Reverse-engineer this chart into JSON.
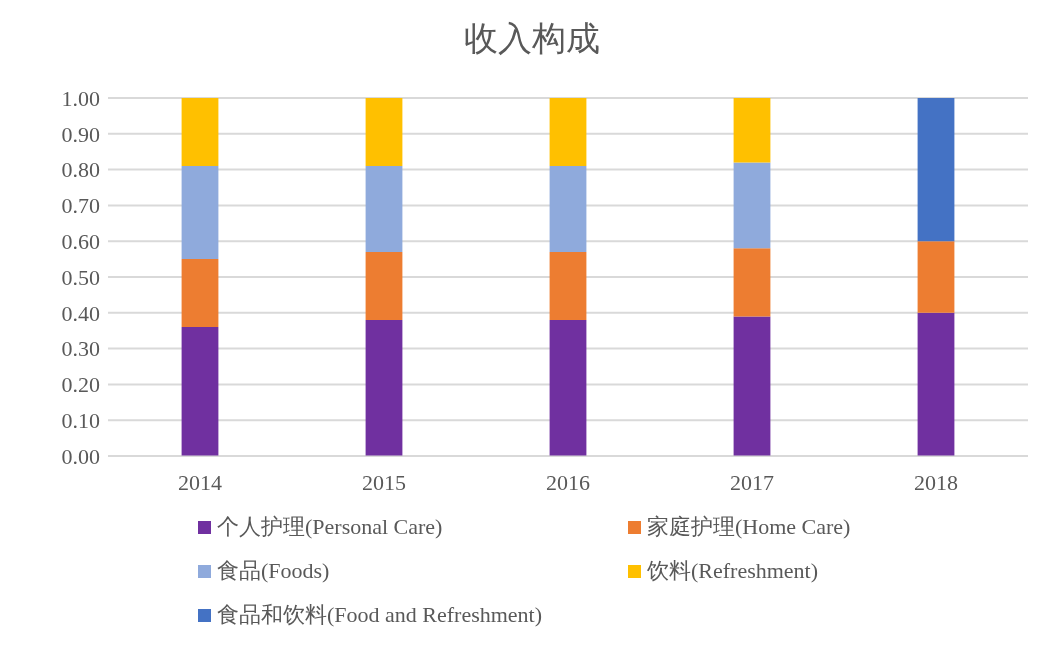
{
  "chart_data": {
    "type": "bar",
    "title": "收入构成",
    "stacked": true,
    "categories": [
      "2014",
      "2015",
      "2016",
      "2017",
      "2018"
    ],
    "series": [
      {
        "name": "个人护理(Personal Care)",
        "color": "#7030a0",
        "values": [
          0.36,
          0.38,
          0.38,
          0.39,
          0.4
        ]
      },
      {
        "name": "家庭护理(Home Care)",
        "color": "#ed7d31",
        "values": [
          0.19,
          0.19,
          0.19,
          0.19,
          0.2
        ]
      },
      {
        "name": "食品(Foods)",
        "color": "#8faadc",
        "values": [
          0.26,
          0.24,
          0.24,
          0.24,
          null
        ]
      },
      {
        "name": "饮料(Refreshment)",
        "color": "#ffc000",
        "values": [
          0.19,
          0.19,
          0.19,
          0.18,
          null
        ]
      },
      {
        "name": "食品和饮料(Food and Refreshment)",
        "color": "#4472c4",
        "values": [
          null,
          null,
          null,
          null,
          0.4
        ]
      }
    ],
    "ylim": [
      0,
      1
    ],
    "yticks": [
      {
        "value": 0,
        "label": "0.00"
      },
      {
        "value": 0.1,
        "label": "0.10"
      },
      {
        "value": 0.2,
        "label": "0.20"
      },
      {
        "value": 0.3,
        "label": "0.30"
      },
      {
        "value": 0.4,
        "label": "0.40"
      },
      {
        "value": 0.5,
        "label": "0.50"
      },
      {
        "value": 0.6,
        "label": "0.60"
      },
      {
        "value": 0.7,
        "label": "0.70"
      },
      {
        "value": 0.8,
        "label": "0.80"
      },
      {
        "value": 0.9,
        "label": "0.90"
      },
      {
        "value": 1,
        "label": "1.00"
      }
    ],
    "grid": "y",
    "legend": "bottom"
  }
}
